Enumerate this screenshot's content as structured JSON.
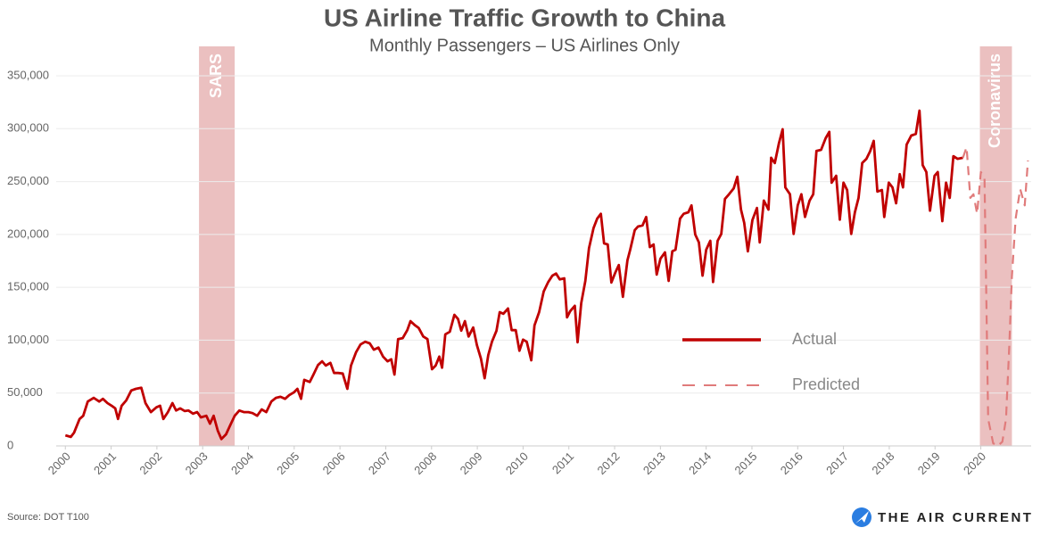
{
  "chart_data": {
    "type": "line",
    "title": "US Airline Traffic Growth to China",
    "subtitle": "Monthly Passengers – US Airlines Only",
    "source": "Source: DOT T100",
    "logo": "THE AIR CURRENT",
    "legend": "right",
    "grid": true,
    "xlim": [
      1999.8,
      2021.1
    ],
    "xticks": [
      2000,
      2001,
      2002,
      2003,
      2004,
      2005,
      2006,
      2007,
      2008,
      2009,
      2010,
      2011,
      2012,
      2013,
      2014,
      2015,
      2016,
      2017,
      2018,
      2019,
      2020
    ],
    "ylim": [
      0,
      350000
    ],
    "yticks": [
      0,
      {
        "value": 50000,
        "label": "50,000"
      },
      {
        "value": 100000,
        "label": "100,000"
      },
      {
        "value": 150000,
        "label": "150,000"
      },
      {
        "value": 200000,
        "label": "200,000"
      },
      {
        "value": 250000,
        "label": "250,000"
      },
      {
        "value": 300000,
        "label": "300,000"
      },
      {
        "value": 350000,
        "label": "350,000"
      }
    ],
    "spans": [
      {
        "label": "SARS",
        "start": 2002.92,
        "end": 2003.7,
        "color": "#e8b5b5"
      },
      {
        "label": "Coronavirus",
        "start": 2019.98,
        "end": 2020.68,
        "color": "#e8b5b5"
      }
    ],
    "series": [
      {
        "name": "Actual",
        "color": "#c00000",
        "style": "solid",
        "x": [
          2000.0,
          2000.12,
          2000.19,
          2000.31,
          2000.39,
          2000.49,
          2000.62,
          2000.74,
          2000.82,
          2000.92,
          2001.01,
          2001.09,
          2001.15,
          2001.23,
          2001.33,
          2001.44,
          2001.54,
          2001.66,
          2001.75,
          2001.87,
          2001.99,
          2002.07,
          2002.14,
          2002.24,
          2002.34,
          2002.42,
          2002.51,
          2002.61,
          2002.69,
          2002.79,
          2002.88,
          2002.96,
          2003.08,
          2003.16,
          2003.24,
          2003.33,
          2003.41,
          2003.51,
          2003.59,
          2003.7,
          2003.8,
          2003.9,
          2004.0,
          2004.09,
          2004.19,
          2004.29,
          2004.39,
          2004.5,
          2004.6,
          2004.7,
          2004.8,
          2004.89,
          2004.99,
          2005.07,
          2005.15,
          2005.22,
          2005.34,
          2005.42,
          2005.52,
          2005.61,
          2005.69,
          2005.79,
          2005.87,
          2005.96,
          2006.06,
          2006.16,
          2006.24,
          2006.35,
          2006.45,
          2006.55,
          2006.65,
          2006.74,
          2006.84,
          2006.94,
          2007.04,
          2007.12,
          2007.19,
          2007.27,
          2007.37,
          2007.47,
          2007.54,
          2007.64,
          2007.72,
          2007.82,
          2007.91,
          2008.01,
          2008.09,
          2008.17,
          2008.23,
          2008.3,
          2008.4,
          2008.5,
          2008.58,
          2008.65,
          2008.73,
          2008.81,
          2008.91,
          2008.99,
          2009.08,
          2009.16,
          2009.24,
          2009.32,
          2009.42,
          2009.49,
          2009.57,
          2009.67,
          2009.75,
          2009.84,
          2009.92,
          2010.0,
          2010.08,
          2010.18,
          2010.25,
          2010.35,
          2010.45,
          2010.55,
          2010.64,
          2010.72,
          2010.8,
          2010.9,
          2010.96,
          2011.03,
          2011.13,
          2011.19,
          2011.27,
          2011.36,
          2011.44,
          2011.54,
          2011.62,
          2011.7,
          2011.77,
          2011.85,
          2011.93,
          2012.01,
          2012.09,
          2012.18,
          2012.28,
          2012.34,
          2012.44,
          2012.51,
          2012.61,
          2012.69,
          2012.77,
          2012.85,
          2012.92,
          2013.0,
          2013.1,
          2013.18,
          2013.26,
          2013.33,
          2013.43,
          2013.51,
          2013.61,
          2013.68,
          2013.76,
          2013.84,
          2013.92,
          2014.0,
          2014.09,
          2014.15,
          2014.25,
          2014.33,
          2014.41,
          2014.5,
          2014.6,
          2014.68,
          2014.76,
          2014.83,
          2014.91,
          2015.01,
          2015.11,
          2015.17,
          2015.26,
          2015.36,
          2015.42,
          2015.5,
          2015.59,
          2015.67,
          2015.73,
          2015.83,
          2015.91,
          2016.0,
          2016.08,
          2016.16,
          2016.26,
          2016.34,
          2016.41,
          2016.51,
          2016.61,
          2016.69,
          2016.74,
          2016.84,
          2016.92,
          2017.0,
          2017.08,
          2017.17,
          2017.25,
          2017.33,
          2017.41,
          2017.5,
          2017.58,
          2017.66,
          2017.74,
          2017.84,
          2017.89,
          2017.99,
          2018.07,
          2018.15,
          2018.23,
          2018.3,
          2018.38,
          2018.48,
          2018.58,
          2018.66,
          2018.73,
          2018.81,
          2018.89,
          2018.99,
          2019.06,
          2019.16,
          2019.24,
          2019.32,
          2019.4,
          2019.49,
          2019.61
        ],
        "values": [
          10000,
          8500,
          12500,
          25500,
          28500,
          42000,
          45500,
          42000,
          44500,
          40500,
          38000,
          35500,
          25500,
          38000,
          43000,
          52500,
          54000,
          55000,
          40500,
          32000,
          36500,
          38000,
          25500,
          32000,
          40500,
          33500,
          35500,
          33000,
          33500,
          30500,
          32000,
          27000,
          28500,
          21000,
          28500,
          14500,
          6500,
          11000,
          18500,
          28500,
          33500,
          32000,
          32000,
          31000,
          28500,
          34500,
          32000,
          42000,
          45500,
          46500,
          44500,
          48000,
          50500,
          54000,
          44500,
          62500,
          60500,
          67500,
          76500,
          80000,
          76000,
          78500,
          69000,
          69000,
          68500,
          54000,
          76000,
          88500,
          96000,
          98500,
          97000,
          91000,
          93000,
          84500,
          80000,
          82000,
          67500,
          101000,
          102000,
          109500,
          118000,
          114000,
          111500,
          103500,
          101000,
          72500,
          76000,
          84500,
          74000,
          105500,
          108000,
          124000,
          120000,
          109000,
          118000,
          103500,
          112000,
          95500,
          82500,
          64000,
          86000,
          98500,
          109000,
          126500,
          125000,
          130000,
          109500,
          109500,
          90000,
          100500,
          98500,
          81000,
          114000,
          126500,
          146000,
          155000,
          161000,
          163000,
          157500,
          158500,
          121500,
          127500,
          132500,
          98000,
          135000,
          156000,
          187000,
          206000,
          215000,
          219500,
          191500,
          190500,
          154500,
          163500,
          171000,
          141000,
          175500,
          185500,
          204000,
          207500,
          208500,
          216500,
          188000,
          190500,
          162000,
          177000,
          183000,
          156000,
          184000,
          185500,
          215000,
          219500,
          221000,
          227500,
          200000,
          192500,
          161000,
          185500,
          194000,
          155000,
          194000,
          200500,
          233500,
          238000,
          243500,
          254500,
          223500,
          211000,
          184000,
          213500,
          225000,
          192500,
          232000,
          223500,
          272500,
          267500,
          286500,
          299500,
          244500,
          238000,
          200500,
          227500,
          238000,
          216500,
          232000,
          238000,
          279000,
          280000,
          291000,
          297000,
          249000,
          255500,
          214000,
          249000,
          242000,
          200500,
          221000,
          234500,
          267500,
          271500,
          278500,
          288500,
          240500,
          242000,
          216500,
          249000,
          244500,
          229500,
          257000,
          244500,
          285000,
          293500,
          295000,
          317000,
          265500,
          259000,
          222500,
          255500,
          259000,
          212500,
          249000,
          234500,
          274000,
          271500,
          272500
        ]
      },
      {
        "name": "Predicted",
        "color": "#e07b7b",
        "style": "dashed",
        "x": [
          2019.61,
          2019.69,
          2019.77,
          2019.84,
          2019.92,
          2020.0,
          2020.08,
          2020.16,
          2020.27,
          2020.37,
          2020.47,
          2020.55,
          2020.62,
          2020.68,
          2020.76,
          2020.86,
          2020.96,
          2021.03
        ],
        "values": [
          272500,
          282500,
          234500,
          238000,
          219500,
          259000,
          253000,
          25500,
          2500,
          0,
          4000,
          25500,
          93000,
          160000,
          215000,
          243000,
          227500,
          270000
        ]
      }
    ]
  }
}
